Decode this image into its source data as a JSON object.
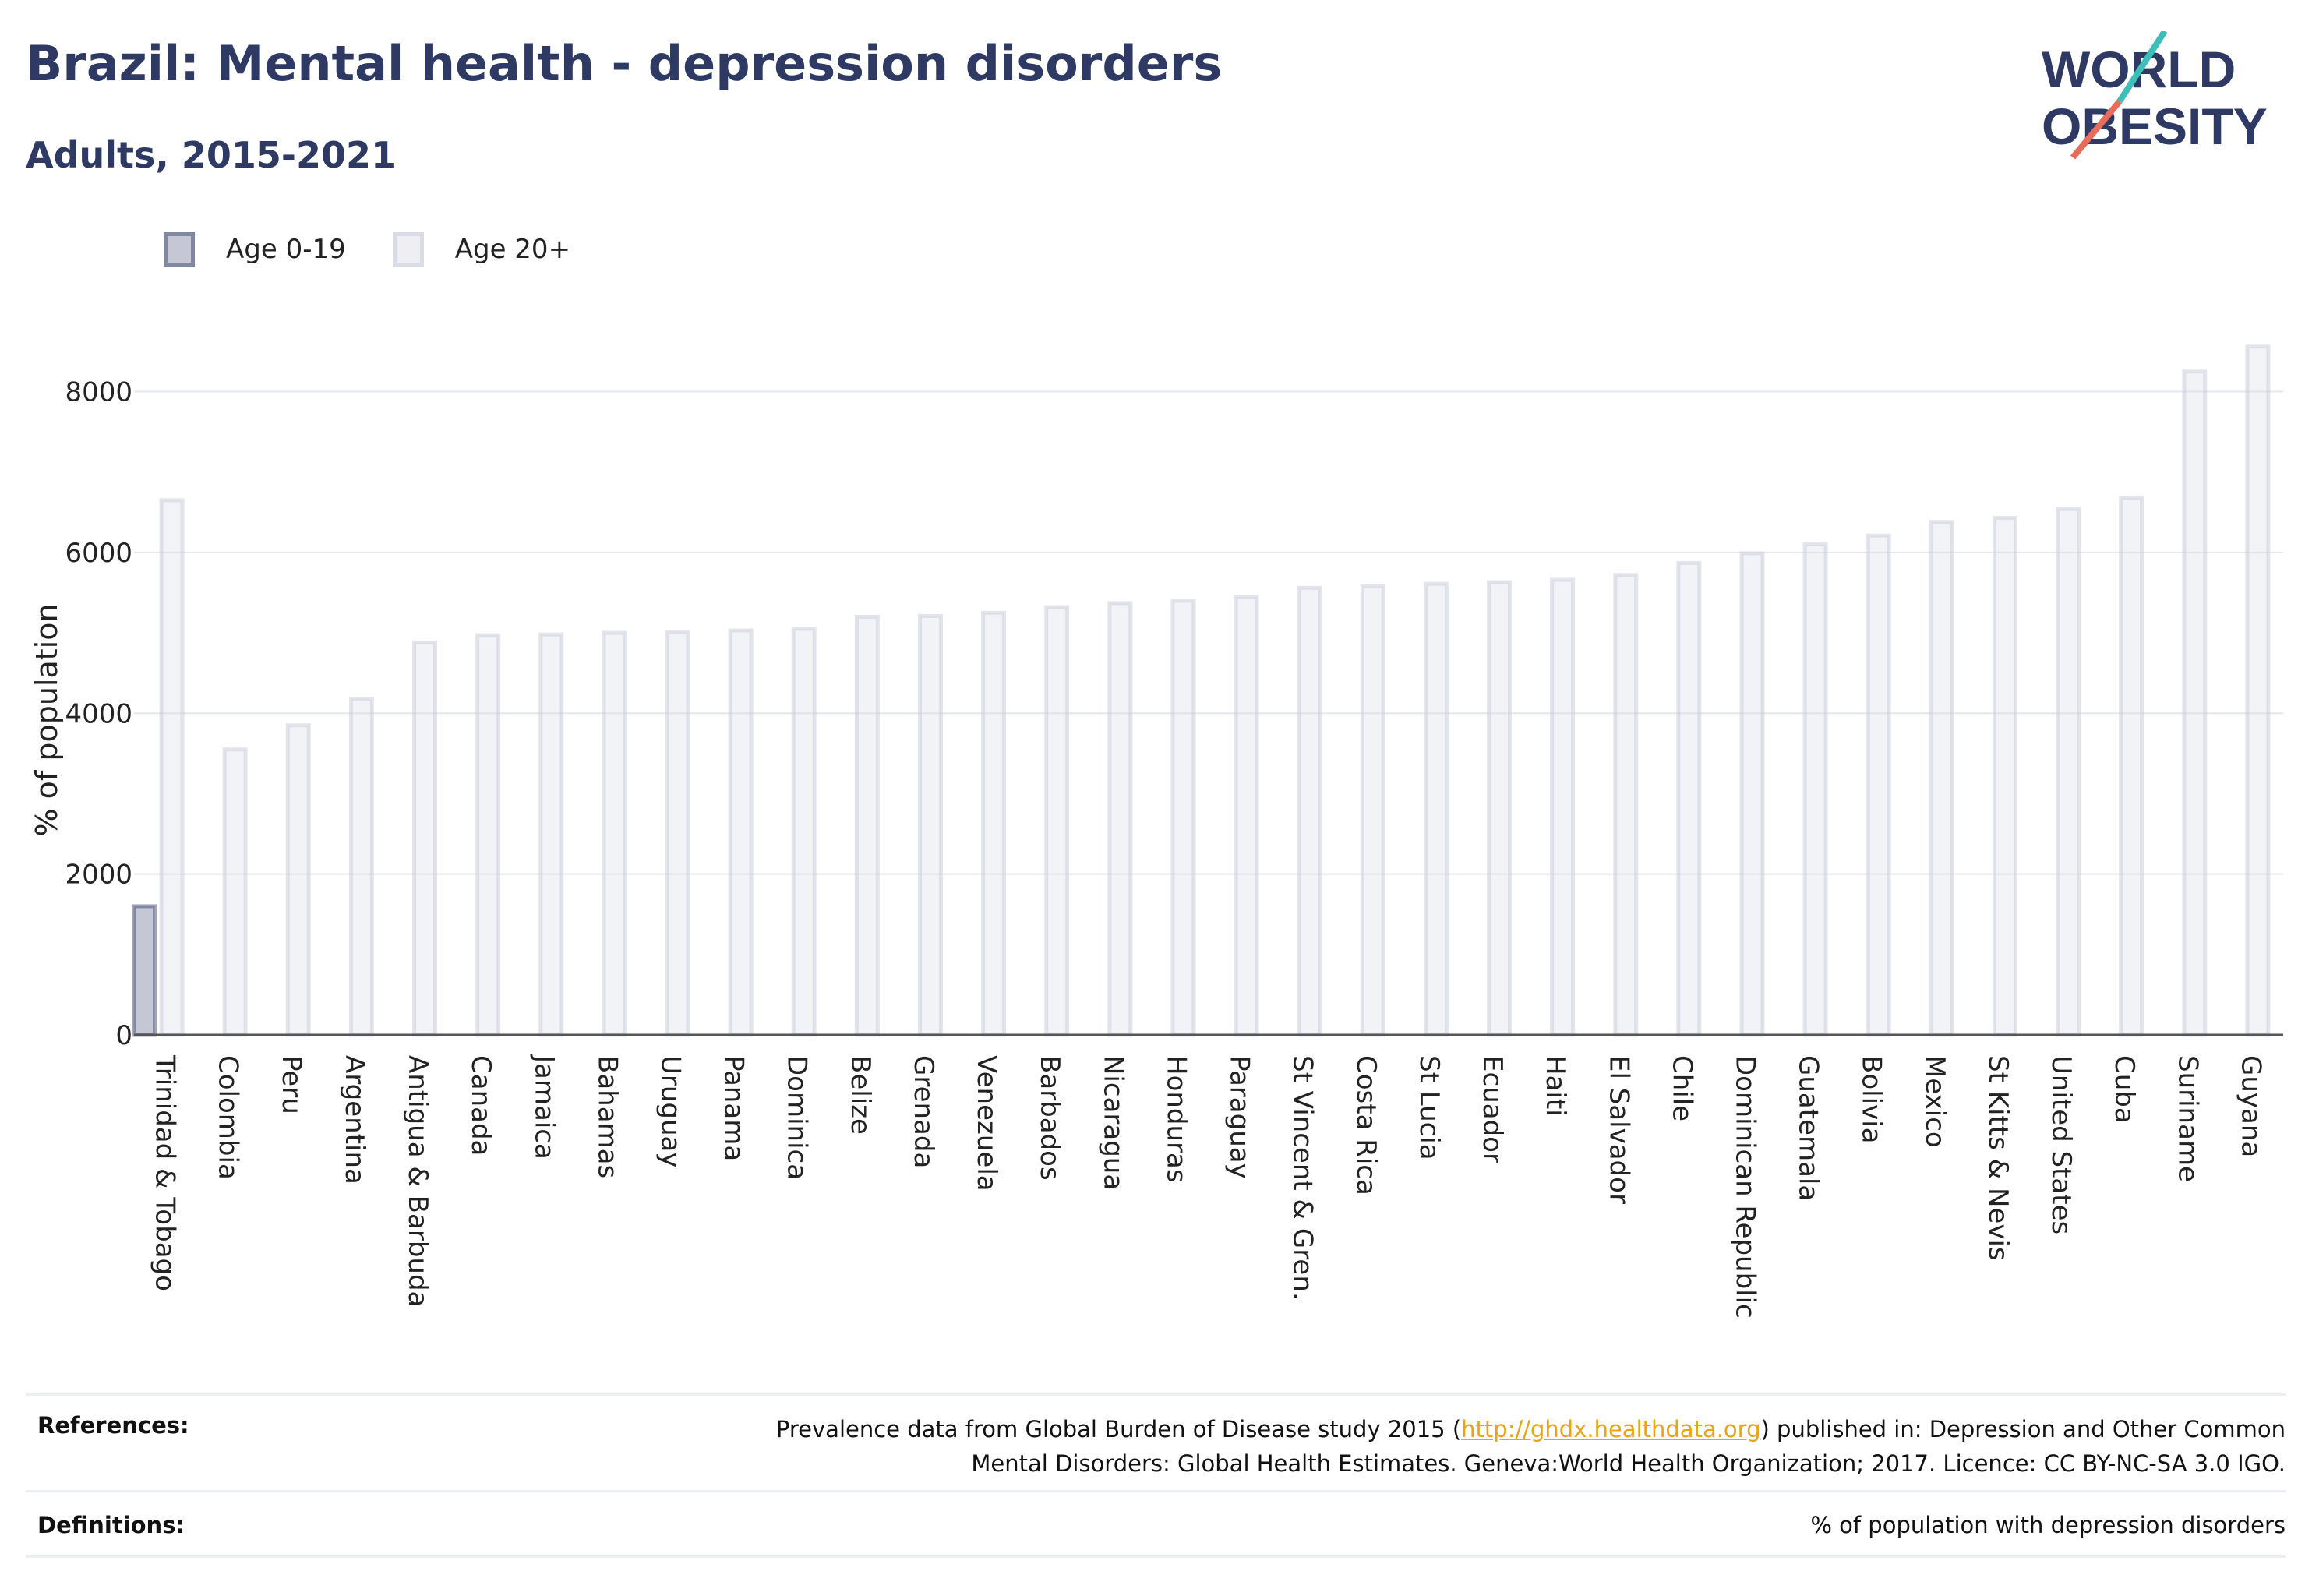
{
  "header": {
    "title": "Brazil: Mental health - depression disorders",
    "subtitle": "Adults, 2015-2021"
  },
  "logo": {
    "line1": "WORLD",
    "line2": "OBESITY",
    "colors": {
      "text": "#2e3a63",
      "slash_top": "#3bbfb8",
      "slash_bottom": "#e86c5a"
    }
  },
  "legend": {
    "items": [
      {
        "label": "Age 0-19",
        "color": "#2e3a63"
      },
      {
        "label": "Age 20+",
        "color": "#d4d6e2"
      }
    ]
  },
  "chart_data": {
    "type": "bar",
    "ylabel": "% of population",
    "xlabel": "",
    "ylim": [
      0,
      8800
    ],
    "yticks": [
      0,
      2000,
      4000,
      6000,
      8000
    ],
    "grid": true,
    "legend_position": "top-left",
    "categories": [
      "Trinidad & Tobago",
      "Colombia",
      "Peru",
      "Argentina",
      "Antigua & Barbuda",
      "Canada",
      "Jamaica",
      "Bahamas",
      "Uruguay",
      "Panama",
      "Dominica",
      "Belize",
      "Grenada",
      "Venezuela",
      "Barbados",
      "Nicaragua",
      "Honduras",
      "Paraguay",
      "St Vincent & Gren.",
      "Costa Rica",
      "St Lucia",
      "Ecuador",
      "Haiti",
      "El Salvador",
      "Chile",
      "Dominican Republic",
      "Guatemala",
      "Bolivia",
      "Mexico",
      "St Kitts & Nevis",
      "United States",
      "Cuba",
      "Suriname",
      "Guyana"
    ],
    "series": [
      {
        "name": "Age 0-19",
        "color": "#2e3a63",
        "values": [
          1600,
          null,
          null,
          null,
          null,
          null,
          null,
          null,
          null,
          null,
          null,
          null,
          null,
          null,
          null,
          null,
          null,
          null,
          null,
          null,
          null,
          null,
          null,
          null,
          null,
          null,
          null,
          null,
          null,
          null,
          null,
          null,
          null,
          null
        ]
      },
      {
        "name": "Age 20+",
        "color": "#d4d6e2",
        "values": [
          6650,
          3550,
          3850,
          4180,
          4880,
          4970,
          4980,
          5000,
          5010,
          5030,
          5050,
          5200,
          5210,
          5250,
          5320,
          5370,
          5400,
          5450,
          5560,
          5580,
          5610,
          5630,
          5660,
          5720,
          5870,
          5990,
          6100,
          6210,
          6380,
          6430,
          6540,
          6680,
          8250,
          8560
        ]
      }
    ]
  },
  "footer": {
    "references_label": "References:",
    "references_line1_before": "Prevalence data from Global Burden of Disease study 2015 (",
    "references_link": "http://ghdx.healthdata.org",
    "references_line1_after": ") published in: Depression and Other Common",
    "references_line2": "Mental Disorders: Global Health Estimates. Geneva:World Health Organization; 2017. Licence: CC BY-NC-SA 3.0 IGO.",
    "definitions_label": "Definitions:",
    "definitions_text": "% of population with depression disorders"
  }
}
